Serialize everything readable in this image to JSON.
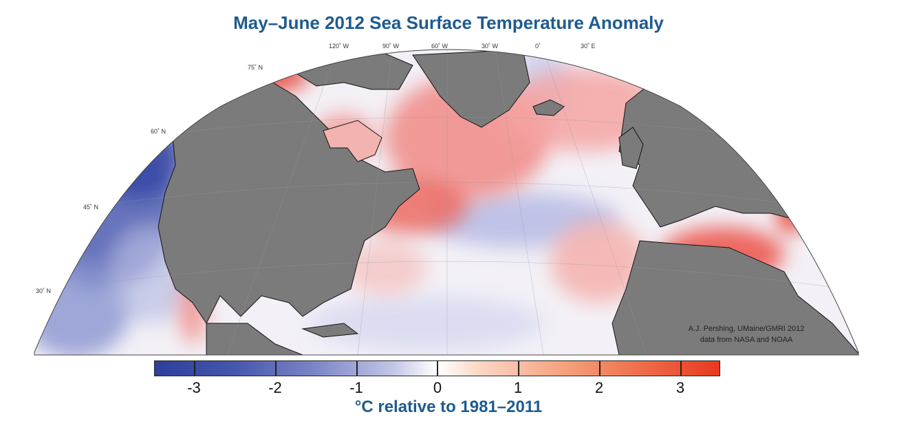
{
  "title": "May–June 2012 Sea Surface Temperature Anomaly",
  "map": {
    "lon_labels": [
      "120˚ W",
      "90˚ W",
      "60˚ W",
      "30˚ W",
      "0˚",
      "30˚ E"
    ],
    "lat_labels": [
      "75˚ N",
      "60˚ N",
      "45˚ N",
      "30˚ N"
    ],
    "land_color": "#7b7b7b",
    "ocean_neutral_color": "#f4f2f8",
    "warm_color": "#e83a2e",
    "cool_color": "#3a4aa6"
  },
  "credit": {
    "line1": "A.J. Pershing, UMaine/GMRI 2012",
    "line2": "data from NASA and NOAA"
  },
  "colorbar": {
    "ticks": [
      "-3",
      "-2",
      "-1",
      "0",
      "1",
      "2",
      "3"
    ],
    "range": [
      -3.5,
      3.5
    ],
    "units": "°C relative to 1981–2011"
  }
}
